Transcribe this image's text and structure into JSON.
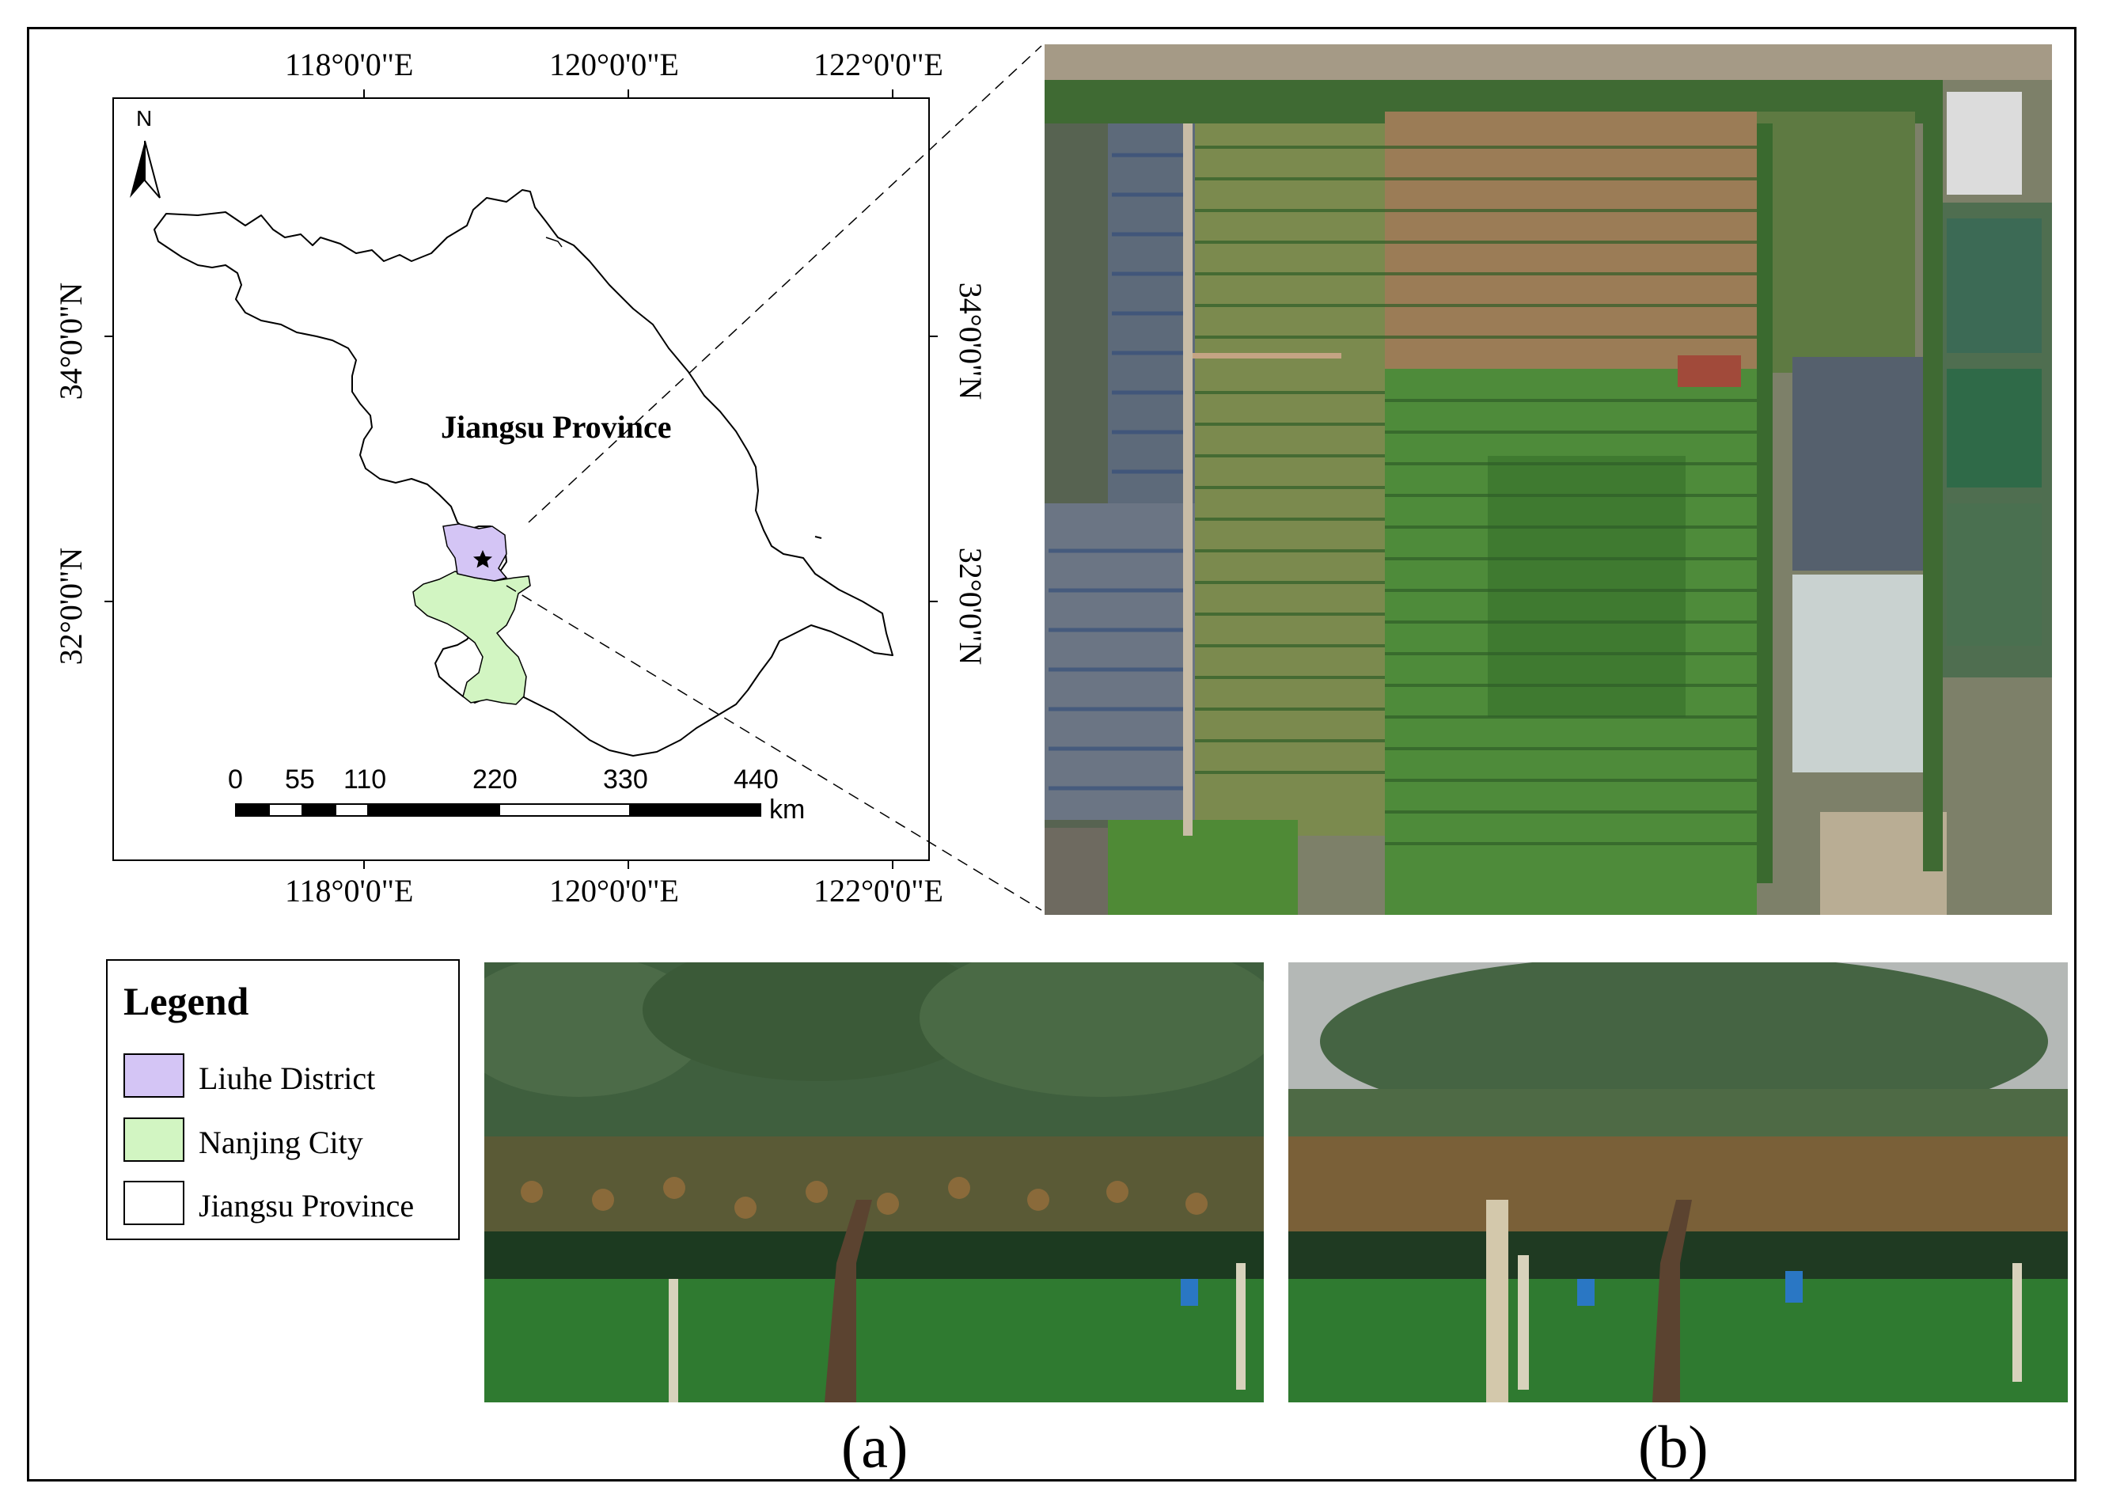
{
  "map": {
    "top_ticks": [
      "118°0'0\"E",
      "120°0'0\"E",
      "122°0'0\"E"
    ],
    "bottom_ticks": [
      "118°0'0\"E",
      "120°0'0\"E",
      "122°0'0\"E"
    ],
    "left_ticks": [
      "34°0'0\"N",
      "32°0'0\"N"
    ],
    "right_ticks": [
      "34°0'0\"N",
      "32°0'0\"N"
    ],
    "north_label": "N",
    "province_label": "Jiangsu Province",
    "scale_labels": [
      "0",
      "55",
      "110",
      "220",
      "330",
      "440"
    ],
    "scale_unit": "km"
  },
  "legend": {
    "title": "Legend",
    "items": [
      {
        "label": "Liuhe District",
        "color": "#d4c5f5"
      },
      {
        "label": "Nanjing City",
        "color": "#d2f5c2"
      },
      {
        "label": "Jiangsu Province",
        "color": "#ffffff"
      }
    ]
  },
  "captions": {
    "a": "(a)",
    "b": "(b)"
  },
  "colors": {
    "liuhe": "#d4c5f5",
    "nanjing": "#d2f5c2",
    "aerial_green": "#5a8a3c",
    "aerial_soil": "#9a7a55"
  }
}
